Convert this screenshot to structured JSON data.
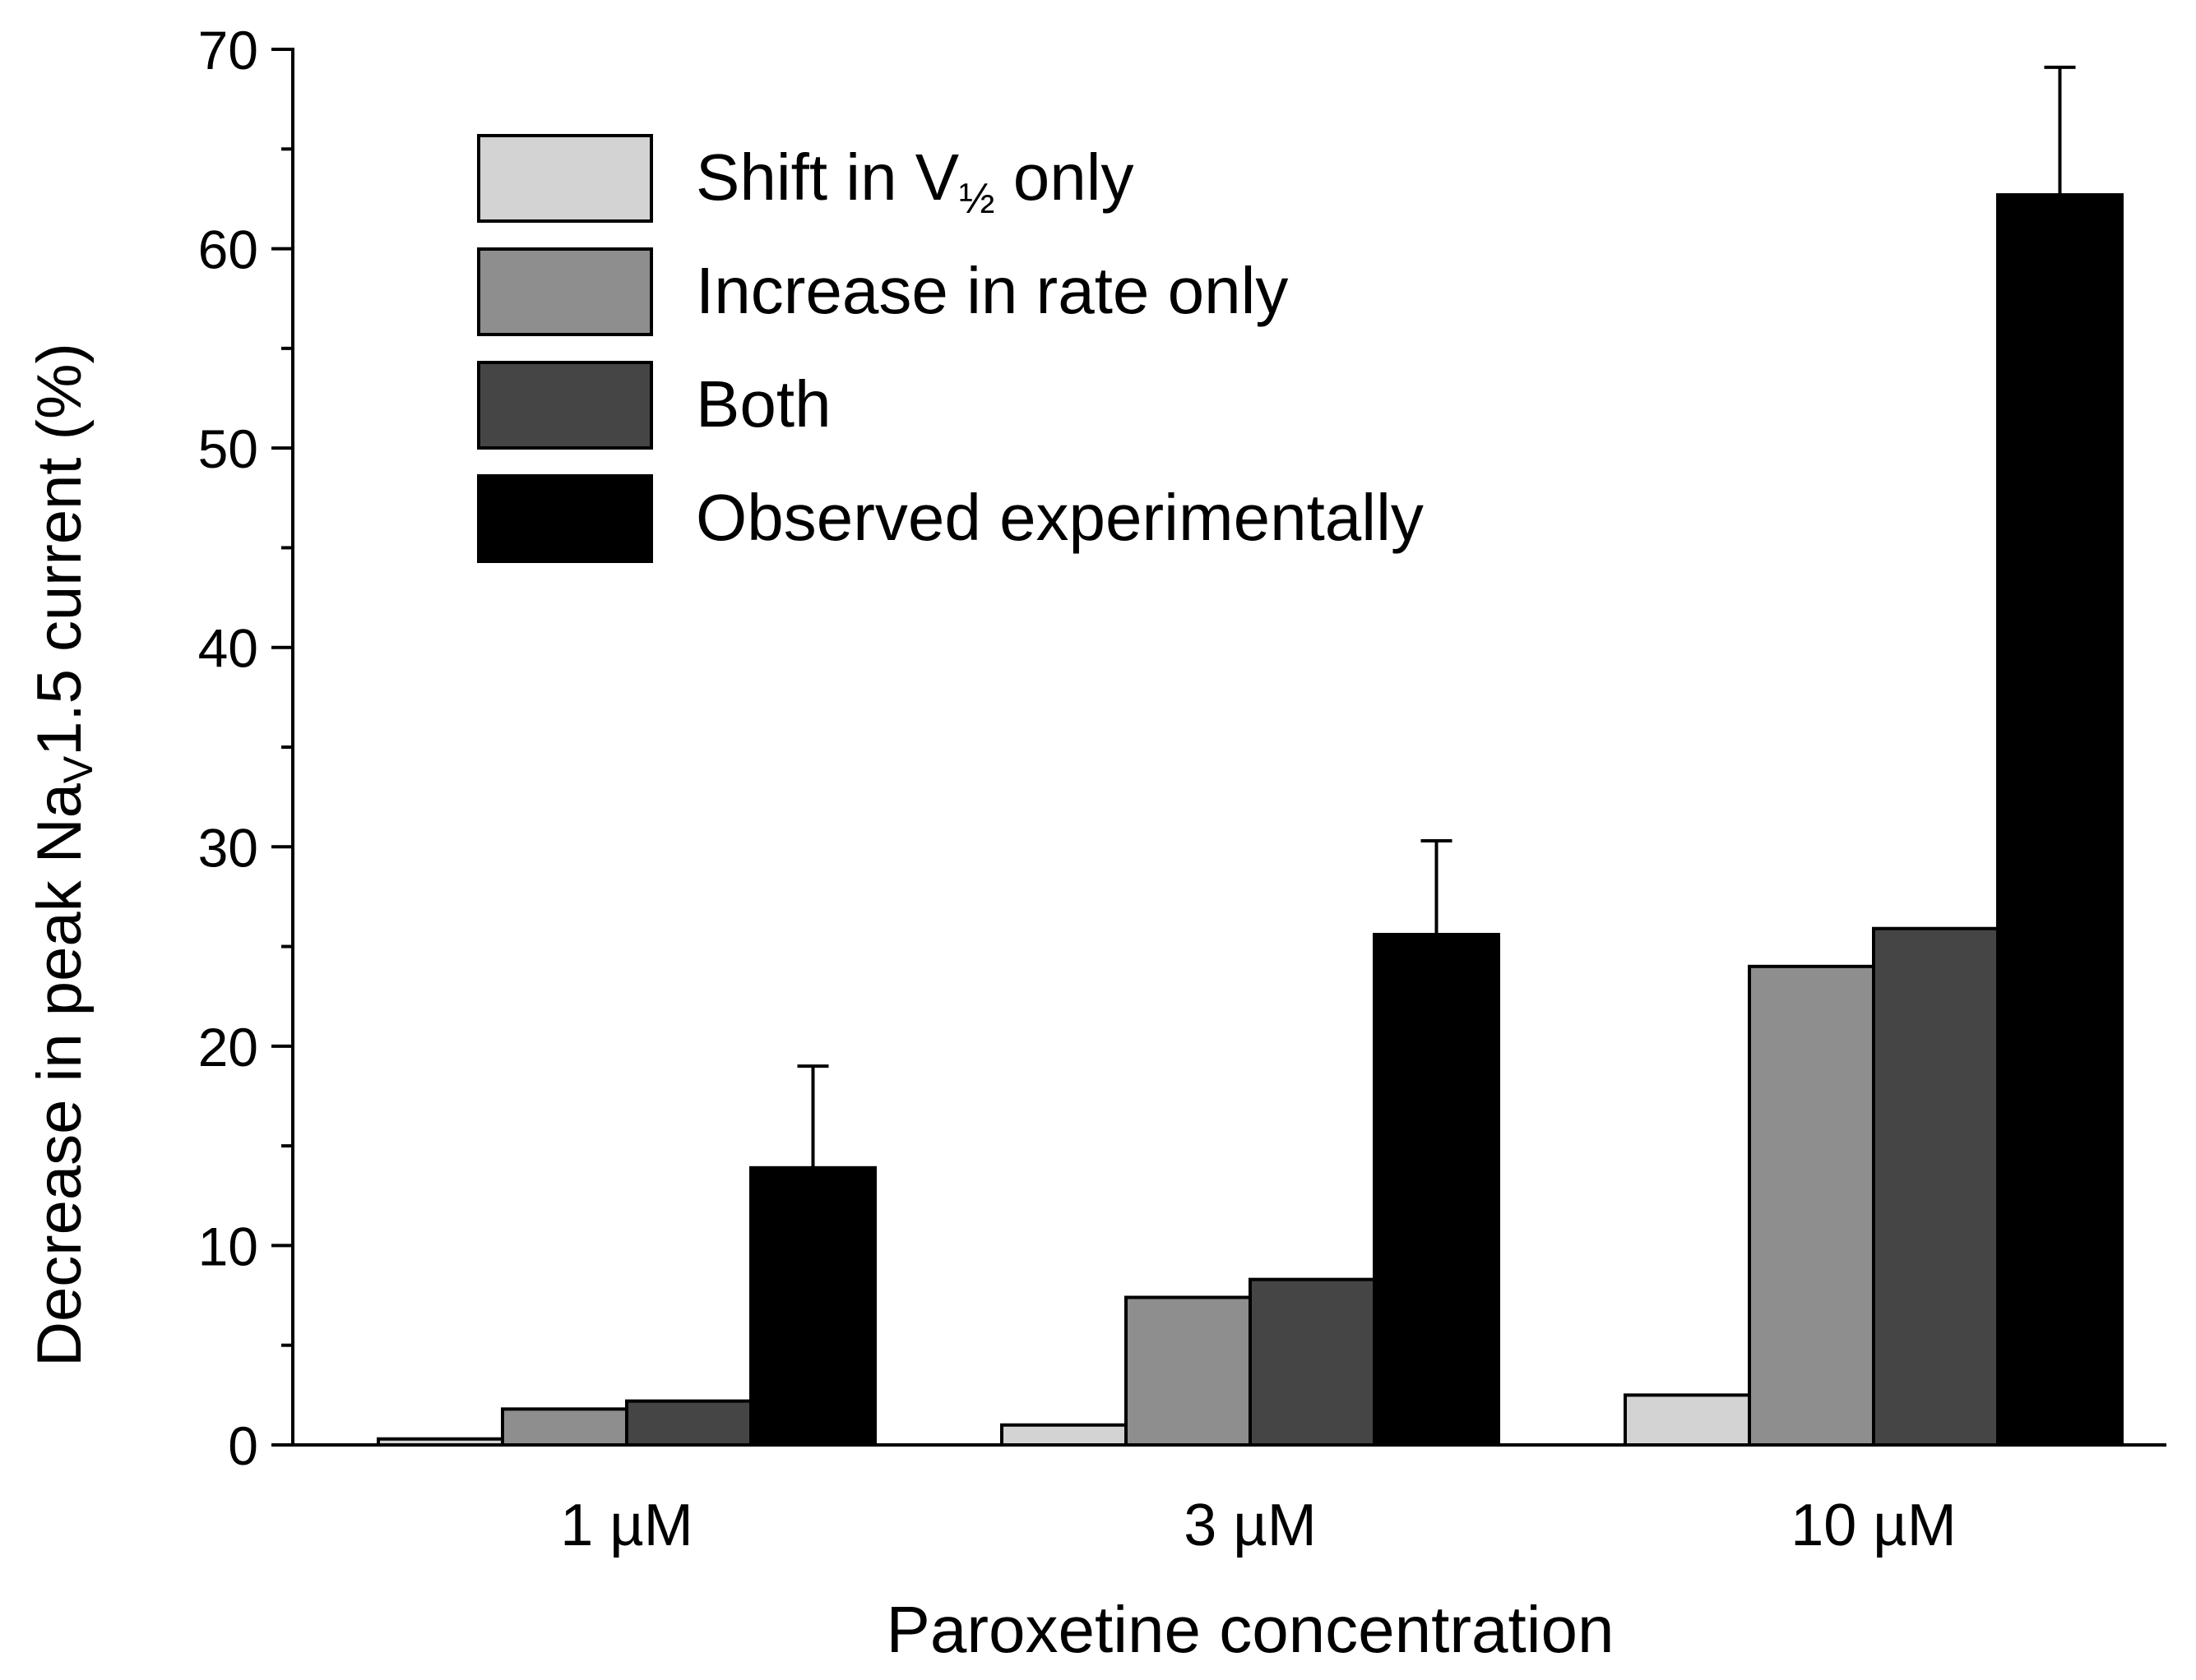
{
  "chart_data": {
    "type": "bar",
    "xlabel": "Paroxetine concentration",
    "ylabel_parts": [
      "Decrease in peak Na",
      "V",
      "1.5 current (%)"
    ],
    "categories": [
      "1 µM",
      "3 µM",
      "10 µM"
    ],
    "ylim": [
      0,
      70
    ],
    "yticks": [
      0,
      10,
      20,
      30,
      40,
      50,
      60,
      70
    ],
    "grid": false,
    "legend_position": "top-left",
    "series": [
      {
        "name": "Shift in V½ only",
        "name_parts": [
          "Shift in V",
          "½",
          " only"
        ],
        "color": "#d3d3d3",
        "values": [
          0.3,
          1.0,
          2.5
        ]
      },
      {
        "name": "Increase in rate only",
        "color": "#8e8e8e",
        "values": [
          1.8,
          7.4,
          24.0
        ]
      },
      {
        "name": "Both",
        "color": "#454545",
        "values": [
          2.2,
          8.3,
          25.9
        ]
      },
      {
        "name": "Observed experimentally",
        "color": "#000000",
        "values": [
          13.9,
          25.6,
          62.7
        ],
        "error_plus": [
          5.1,
          4.7,
          6.4
        ]
      }
    ]
  }
}
